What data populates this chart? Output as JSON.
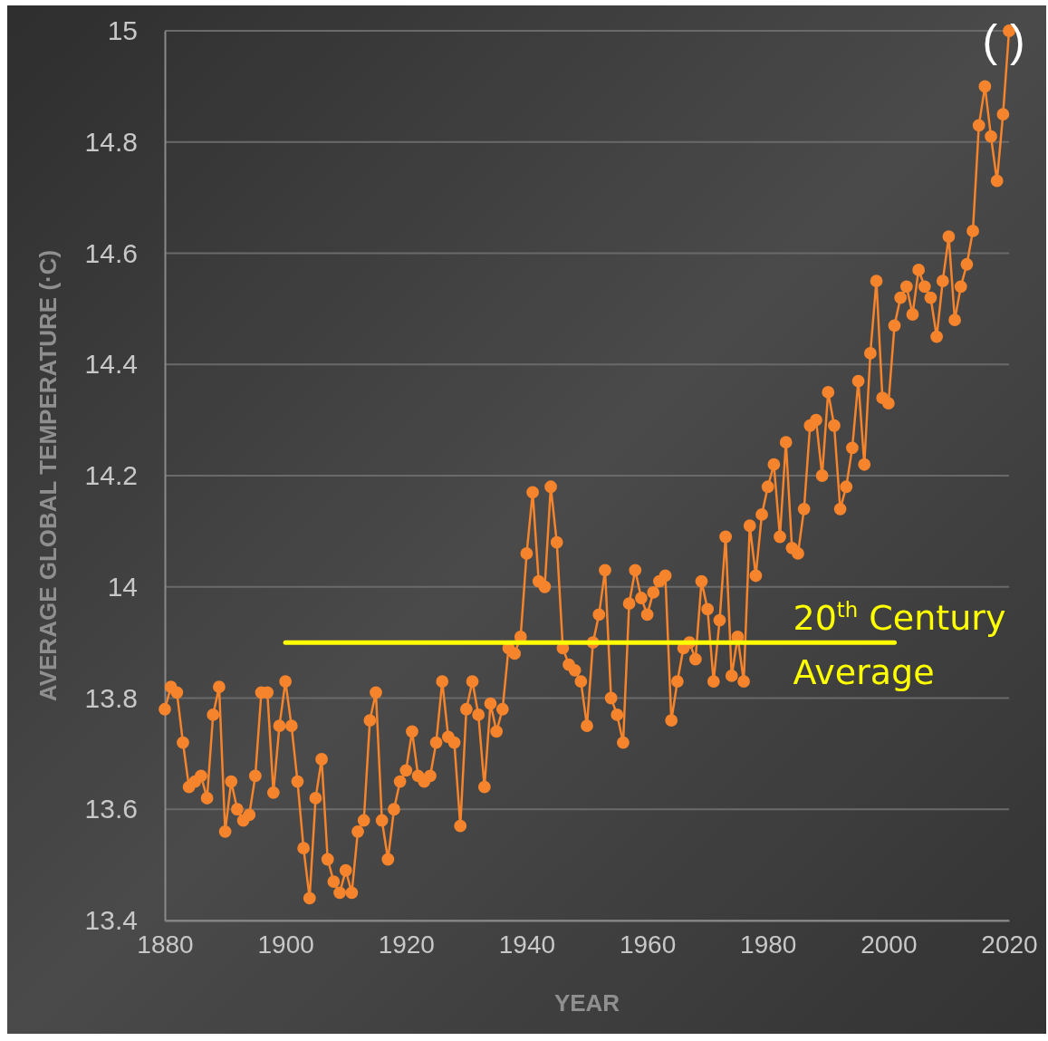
{
  "chart_data": {
    "type": "line",
    "xlabel": "YEAR",
    "ylabel": "AVERAGE GLOBAL TEMPERATURE (·C)",
    "xlim": [
      1880,
      2020
    ],
    "xticks": [
      1880,
      1900,
      1920,
      1940,
      1960,
      1980,
      2000,
      2020
    ],
    "ylim": [
      13.4,
      15
    ],
    "yticks": [
      13.4,
      13.6,
      13.8,
      14,
      14.2,
      14.4,
      14.6,
      14.8,
      15
    ],
    "grid": "y",
    "marker": "circle",
    "line_style": "solid",
    "legend": false,
    "annotations": [
      "( )"
    ],
    "series": [
      {
        "color": "#f5842c",
        "x": [
          1880,
          1881,
          1882,
          1883,
          1884,
          1885,
          1886,
          1887,
          1888,
          1889,
          1890,
          1891,
          1892,
          1893,
          1894,
          1895,
          1896,
          1897,
          1898,
          1899,
          1900,
          1901,
          1902,
          1903,
          1904,
          1905,
          1906,
          1907,
          1908,
          1909,
          1910,
          1911,
          1912,
          1913,
          1914,
          1915,
          1916,
          1917,
          1918,
          1919,
          1920,
          1921,
          1922,
          1923,
          1924,
          1925,
          1926,
          1927,
          1928,
          1929,
          1930,
          1931,
          1932,
          1933,
          1934,
          1935,
          1936,
          1937,
          1938,
          1939,
          1940,
          1941,
          1942,
          1943,
          1944,
          1945,
          1946,
          1947,
          1948,
          1949,
          1950,
          1951,
          1952,
          1953,
          1954,
          1955,
          1956,
          1957,
          1958,
          1959,
          1960,
          1961,
          1962,
          1963,
          1964,
          1965,
          1966,
          1967,
          1968,
          1969,
          1970,
          1971,
          1972,
          1973,
          1974,
          1975,
          1976,
          1977,
          1978,
          1979,
          1980,
          1981,
          1982,
          1983,
          1984,
          1985,
          1986,
          1987,
          1988,
          1989,
          1990,
          1991,
          1992,
          1993,
          1994,
          1995,
          1996,
          1997,
          1998,
          1999,
          2000,
          2001,
          2002,
          2003,
          2004,
          2005,
          2006,
          2007,
          2008,
          2009,
          2010,
          2011,
          2012,
          2013,
          2014,
          2015,
          2016,
          2017,
          2018,
          2019,
          2020
        ],
        "values": [
          13.78,
          13.82,
          13.81,
          13.72,
          13.64,
          13.65,
          13.66,
          13.62,
          13.77,
          13.82,
          13.56,
          13.65,
          13.6,
          13.58,
          13.59,
          13.66,
          13.81,
          13.81,
          13.63,
          13.75,
          13.83,
          13.75,
          13.65,
          13.53,
          13.44,
          13.62,
          13.69,
          13.51,
          13.47,
          13.45,
          13.49,
          13.45,
          13.56,
          13.58,
          13.76,
          13.81,
          13.58,
          13.51,
          13.6,
          13.65,
          13.67,
          13.74,
          13.66,
          13.65,
          13.66,
          13.72,
          13.83,
          13.73,
          13.72,
          13.57,
          13.78,
          13.83,
          13.77,
          13.64,
          13.79,
          13.74,
          13.78,
          13.89,
          13.88,
          13.91,
          14.06,
          14.17,
          14.01,
          14,
          14.18,
          14.08,
          13.89,
          13.86,
          13.85,
          13.83,
          13.75,
          13.9,
          13.95,
          14.03,
          13.8,
          13.77,
          13.72,
          13.97,
          14.03,
          13.98,
          13.95,
          13.99,
          14.01,
          14.02,
          13.76,
          13.83,
          13.89,
          13.9,
          13.87,
          14.01,
          13.96,
          13.83,
          13.94,
          14.09,
          13.84,
          13.91,
          13.83,
          14.11,
          14.02,
          14.13,
          14.18,
          14.22,
          14.09,
          14.26,
          14.07,
          14.06,
          14.14,
          14.29,
          14.3,
          14.2,
          14.35,
          14.29,
          14.14,
          14.18,
          14.25,
          14.37,
          14.22,
          14.42,
          14.55,
          14.34,
          14.33,
          14.47,
          14.52,
          14.54,
          14.49,
          14.57,
          14.54,
          14.52,
          14.45,
          14.55,
          14.63,
          14.48,
          14.54,
          14.58,
          14.64,
          14.83,
          14.9,
          14.81,
          14.73,
          14.85,
          15
        ]
      },
      {
        "name": "20$^{th}$ Century Average",
        "color": "#ffff00",
        "x": [
          1900,
          2001
        ],
        "values": [
          13.9,
          13.9
        ],
        "marker": "none",
        "line_style": "solid"
      }
    ]
  }
}
